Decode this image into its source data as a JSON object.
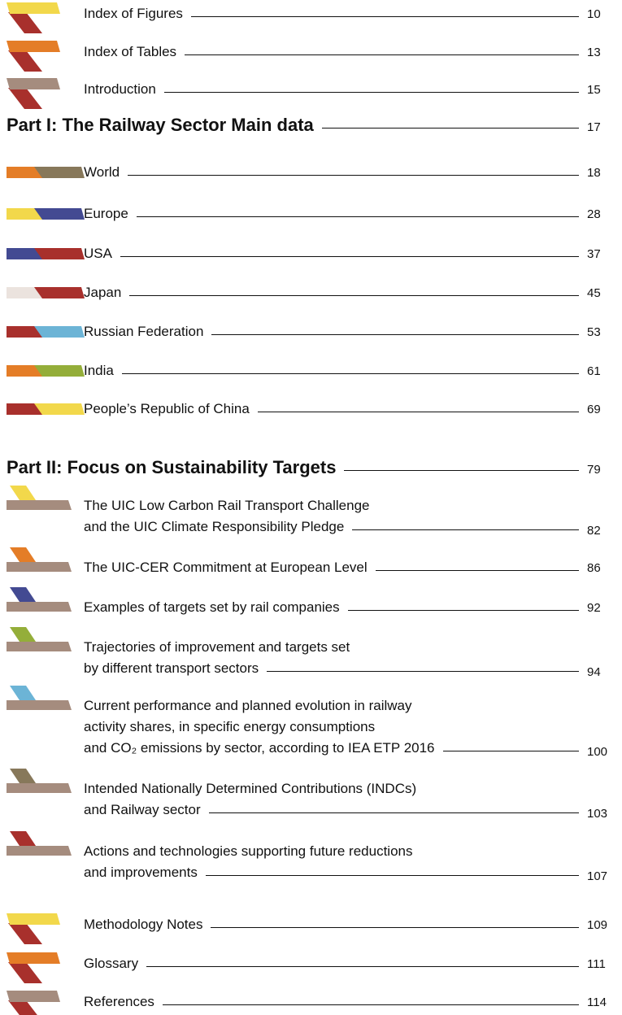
{
  "front": [
    {
      "lines": [
        "Index of Figures"
      ],
      "page": "10"
    },
    {
      "lines": [
        "Index of Tables"
      ],
      "page": "13"
    },
    {
      "lines": [
        "Introduction"
      ],
      "page": "15"
    }
  ],
  "part1": {
    "title": "Part I: The Railway Sector Main data",
    "page": "17",
    "items": [
      {
        "lines": [
          "World"
        ],
        "page": "18"
      },
      {
        "lines": [
          "Europe"
        ],
        "page": "28"
      },
      {
        "lines": [
          "USA"
        ],
        "page": "37"
      },
      {
        "lines": [
          "Japan"
        ],
        "page": "45"
      },
      {
        "lines": [
          "Russian Federation"
        ],
        "page": "53"
      },
      {
        "lines": [
          "India"
        ],
        "page": "61"
      },
      {
        "lines": [
          "People’s Republic of China"
        ],
        "page": "69"
      }
    ]
  },
  "part2": {
    "title": "Part II: Focus on Sustainability Targets",
    "page": "79",
    "items": [
      {
        "lines": [
          "The UIC Low Carbon Rail Transport Challenge",
          "and the UIC Climate Responsibility Pledge"
        ],
        "page": "82"
      },
      {
        "lines": [
          "The UIC-CER Commitment at European Level"
        ],
        "page": "86"
      },
      {
        "lines": [
          "Examples of targets set by rail companies"
        ],
        "page": "92"
      },
      {
        "lines": [
          "Trajectories of improvement and targets set",
          "by different transport sectors"
        ],
        "page": "94"
      },
      {
        "lines": [
          "Current performance and planned evolution in railway",
          "activity shares, in specific energy consumptions",
          "and CO₂ emissions by sector, according to IEA ETP 2016"
        ],
        "page": "100"
      },
      {
        "lines": [
          "Intended Nationally Determined Contributions (INDCs)",
          "and Railway sector"
        ],
        "page": "103"
      },
      {
        "lines": [
          "Actions and technologies supporting future reductions",
          "and improvements"
        ],
        "page": "107"
      }
    ]
  },
  "back": [
    {
      "lines": [
        "Methodology Notes"
      ],
      "page": "109"
    },
    {
      "lines": [
        "Glossary"
      ],
      "page": "111"
    },
    {
      "lines": [
        "References"
      ],
      "page": "114"
    }
  ]
}
